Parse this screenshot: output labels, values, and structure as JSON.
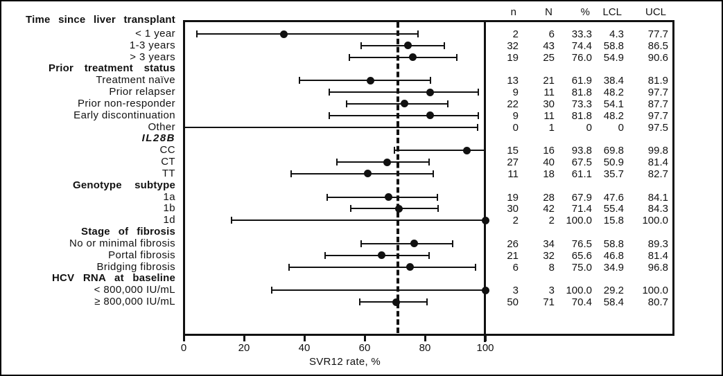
{
  "chart_data": {
    "type": "forest",
    "xlabel": "SVR12 rate, %",
    "x_ticks": [
      "0",
      "20",
      "40",
      "60",
      "80",
      "100"
    ],
    "xlim": [
      0,
      100
    ],
    "grid": false,
    "reference_line_dashed_pct": 71,
    "reference_line_solid_pct": 100,
    "columns": [
      "n",
      "N",
      "%",
      "LCL",
      "UCL"
    ],
    "groups": [
      {
        "header": "Time since liver transplant",
        "rows": [
          {
            "label": "< 1 year",
            "n": "2",
            "N": "6",
            "pct": "33.3",
            "lcl": "4.3",
            "ucl": "77.7"
          },
          {
            "label": "1-3 years",
            "n": "32",
            "N": "43",
            "pct": "74.4",
            "lcl": "58.8",
            "ucl": "86.5"
          },
          {
            "label": "> 3 years",
            "n": "19",
            "N": "25",
            "pct": "76.0",
            "lcl": "54.9",
            "ucl": "90.6"
          }
        ]
      },
      {
        "header": "Prior treatment status",
        "rows": [
          {
            "label": "Treatment naïve",
            "n": "13",
            "N": "21",
            "pct": "61.9",
            "lcl": "38.4",
            "ucl": "81.9"
          },
          {
            "label": "Prior relapser",
            "n": "9",
            "N": "11",
            "pct": "81.8",
            "lcl": "48.2",
            "ucl": "97.7"
          },
          {
            "label": "Prior non-responder",
            "n": "22",
            "N": "30",
            "pct": "73.3",
            "lcl": "54.1",
            "ucl": "87.7"
          },
          {
            "label": "Early discontinuation",
            "n": "9",
            "N": "11",
            "pct": "81.8",
            "lcl": "48.2",
            "ucl": "97.7"
          },
          {
            "label": "Other",
            "n": "0",
            "N": "1",
            "pct": "0",
            "lcl": "0",
            "ucl": "97.5"
          }
        ]
      },
      {
        "header": "IL28B",
        "rows": [
          {
            "label": "CC",
            "n": "15",
            "N": "16",
            "pct": "93.8",
            "lcl": "69.8",
            "ucl": "99.8"
          },
          {
            "label": "CT",
            "n": "27",
            "N": "40",
            "pct": "67.5",
            "lcl": "50.9",
            "ucl": "81.4"
          },
          {
            "label": "TT",
            "n": "11",
            "N": "18",
            "pct": "61.1",
            "lcl": "35.7",
            "ucl": "82.7"
          }
        ]
      },
      {
        "header": "Genotype subtype",
        "rows": [
          {
            "label": "1a",
            "n": "19",
            "N": "28",
            "pct": "67.9",
            "lcl": "47.6",
            "ucl": "84.1"
          },
          {
            "label": "1b",
            "n": "30",
            "N": "42",
            "pct": "71.4",
            "lcl": "55.4",
            "ucl": "84.3"
          },
          {
            "label": "1d",
            "n": "2",
            "N": "2",
            "pct": "100.0",
            "lcl": "15.8",
            "ucl": "100.0"
          }
        ]
      },
      {
        "header": "Stage of fibrosis",
        "rows": [
          {
            "label": "No or minimal fibrosis",
            "n": "26",
            "N": "34",
            "pct": "76.5",
            "lcl": "58.8",
            "ucl": "89.3"
          },
          {
            "label": "Portal fibrosis",
            "n": "21",
            "N": "32",
            "pct": "65.6",
            "lcl": "46.8",
            "ucl": "81.4"
          },
          {
            "label": "Bridging fibrosis",
            "n": "6",
            "N": "8",
            "pct": "75.0",
            "lcl": "34.9",
            "ucl": "96.8"
          }
        ]
      },
      {
        "header": "HCV RNA at baseline",
        "rows": [
          {
            "label": "< 800,000 IU/mL",
            "n": "3",
            "N": "3",
            "pct": "100.0",
            "lcl": "29.2",
            "ucl": "100.0"
          },
          {
            "label": "≥ 800,000 IU/mL",
            "n": "50",
            "N": "71",
            "pct": "70.4",
            "lcl": "58.4",
            "ucl": "80.7"
          }
        ]
      }
    ]
  }
}
